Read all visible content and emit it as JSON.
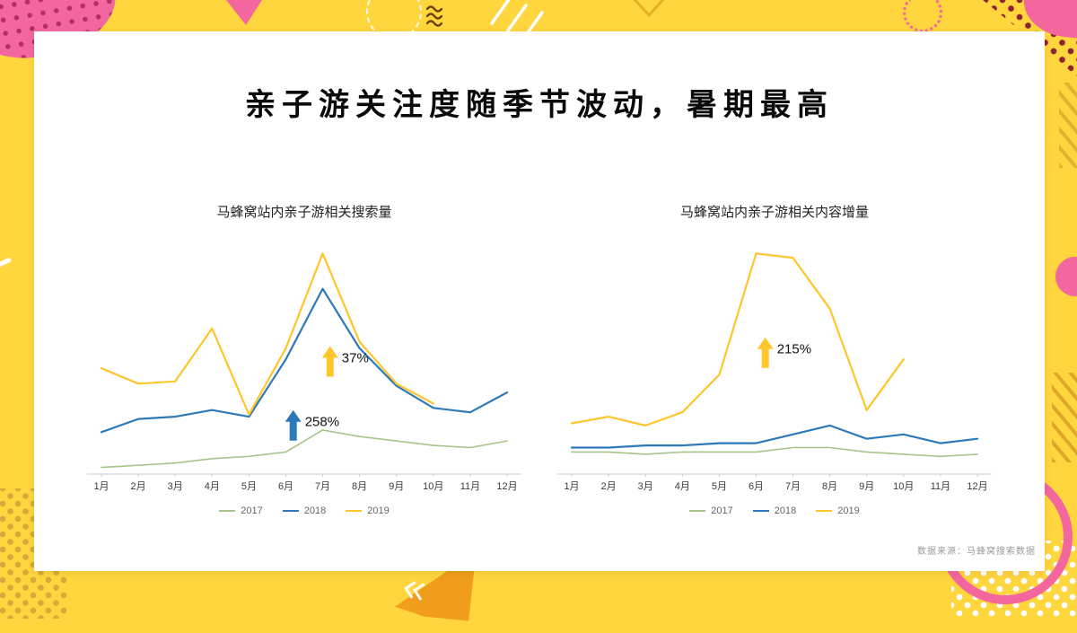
{
  "slide": {
    "title": "亲子游关注度随季节波动，暑期最高",
    "source": "数据来源：马蜂窝搜索数据"
  },
  "colors": {
    "background": "#ffd63e",
    "card": "#ffffff",
    "pink": "#f4679e",
    "dark_red": "#8e2332",
    "orange": "#f09e1b",
    "series_2017": "#a6c48a",
    "series_2018": "#2e79b9",
    "series_2019": "#ffc62b"
  },
  "chart_data": [
    {
      "type": "line",
      "title": "马蜂窝站内亲子游相关搜索量",
      "categories": [
        "1月",
        "2月",
        "3月",
        "4月",
        "5月",
        "6月",
        "7月",
        "8月",
        "9月",
        "10月",
        "11月",
        "12月"
      ],
      "ymax": 105,
      "grid": false,
      "legend_position": "bottom",
      "series": [
        {
          "name": "2017",
          "color": "#a6c48a",
          "values": [
            3,
            4,
            5,
            7,
            8,
            10,
            20,
            17,
            15,
            13,
            12,
            15
          ]
        },
        {
          "name": "2018",
          "color": "#2e79b9",
          "values": [
            19,
            25,
            26,
            29,
            26,
            52,
            84,
            57,
            40,
            30,
            28,
            37
          ]
        },
        {
          "name": "2019",
          "color": "#ffc62b",
          "values": [
            48,
            41,
            42,
            66,
            27,
            57,
            100,
            60,
            41,
            32,
            null,
            null
          ]
        }
      ],
      "annotations": [
        {
          "text": "258%",
          "color": "#2e79b9",
          "month": 6.2,
          "value": 29
        },
        {
          "text": "37%",
          "color": "#ffc62b",
          "month": 7.2,
          "value": 58
        }
      ]
    },
    {
      "type": "line",
      "title": "马蜂窝站内亲子游相关内容增量",
      "categories": [
        "1月",
        "2月",
        "3月",
        "4月",
        "5月",
        "6月",
        "7月",
        "8月",
        "9月",
        "10月",
        "11月",
        "12月"
      ],
      "ymax": 105,
      "grid": false,
      "legend_position": "bottom",
      "series": [
        {
          "name": "2017",
          "color": "#a6c48a",
          "values": [
            10,
            10,
            9,
            10,
            10,
            10,
            12,
            12,
            10,
            9,
            8,
            9
          ]
        },
        {
          "name": "2018",
          "color": "#2e79b9",
          "values": [
            12,
            12,
            13,
            13,
            14,
            14,
            18,
            22,
            16,
            18,
            14,
            16
          ]
        },
        {
          "name": "2019",
          "color": "#ffc62b",
          "values": [
            23,
            26,
            22,
            28,
            45,
            100,
            98,
            75,
            29,
            52,
            null,
            null
          ]
        }
      ],
      "annotations": [
        {
          "text": "215%",
          "color": "#ffc62b",
          "month": 6.25,
          "value": 62
        }
      ]
    }
  ]
}
